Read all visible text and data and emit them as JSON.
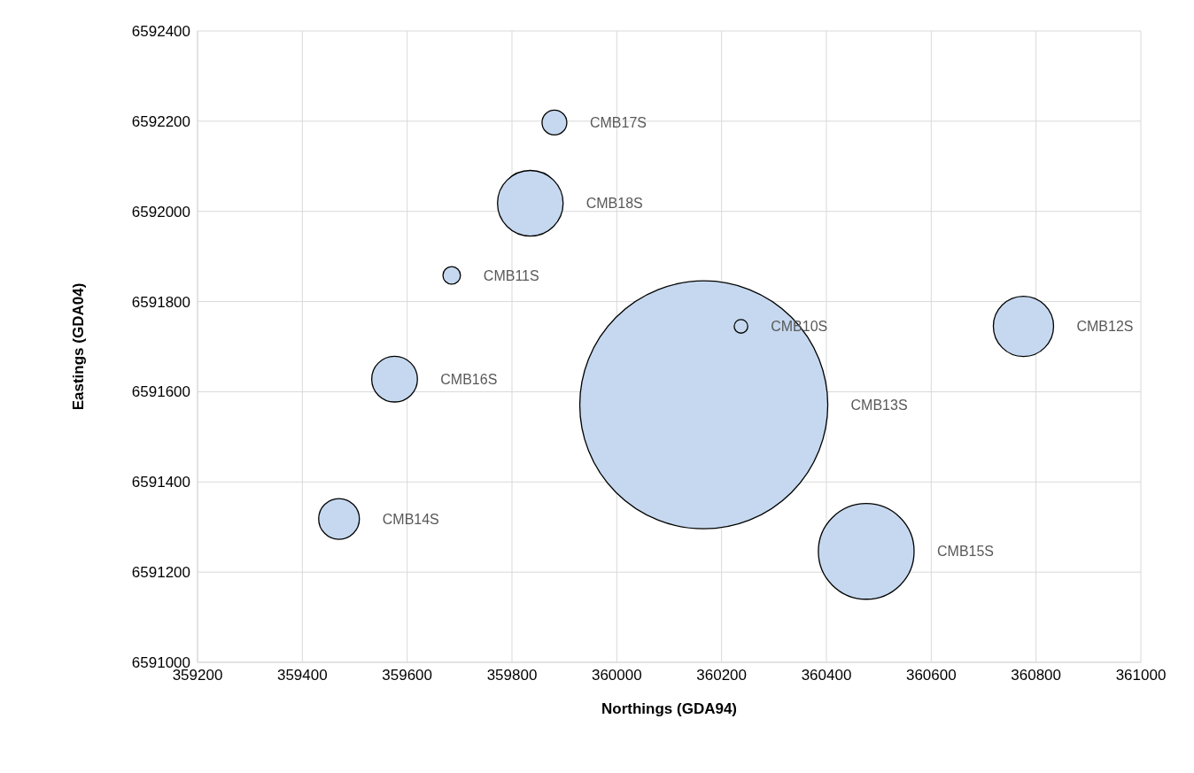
{
  "chart_data": {
    "type": "bubble",
    "xlabel": "Northings (GDA94)",
    "ylabel": "Eastings (GDA04)",
    "x": [
      360166,
      359881,
      359835,
      359685,
      360237,
      360776,
      359576,
      359470,
      360476
    ],
    "values": [
      6591571,
      6592197,
      6592018,
      6591858,
      6591745,
      6591745,
      6591628,
      6591318,
      6591246
    ],
    "sizes": [
      1,
      0.01,
      0.07,
      0.005,
      0.003,
      0.059,
      0.034,
      0.027,
      0.149
    ],
    "color": "#c5d8ef",
    "xlim": [
      359200,
      361000
    ],
    "xticks": [
      359200,
      359400,
      359600,
      359800,
      360000,
      360200,
      360400,
      360600,
      360800,
      361000
    ],
    "ylim": [
      6591000,
      6592400
    ],
    "yticks": [
      6591000,
      6591200,
      6591400,
      6591600,
      6591800,
      6592000,
      6592200,
      6592400
    ],
    "grid": true,
    "legend": false,
    "annotations": [
      "CMB13S",
      "CMB17S",
      "CMB18S",
      "CMB11S",
      "CMB10S",
      "CMB12S",
      "CMB16S",
      "CMB14S",
      "CMB15S"
    ]
  }
}
